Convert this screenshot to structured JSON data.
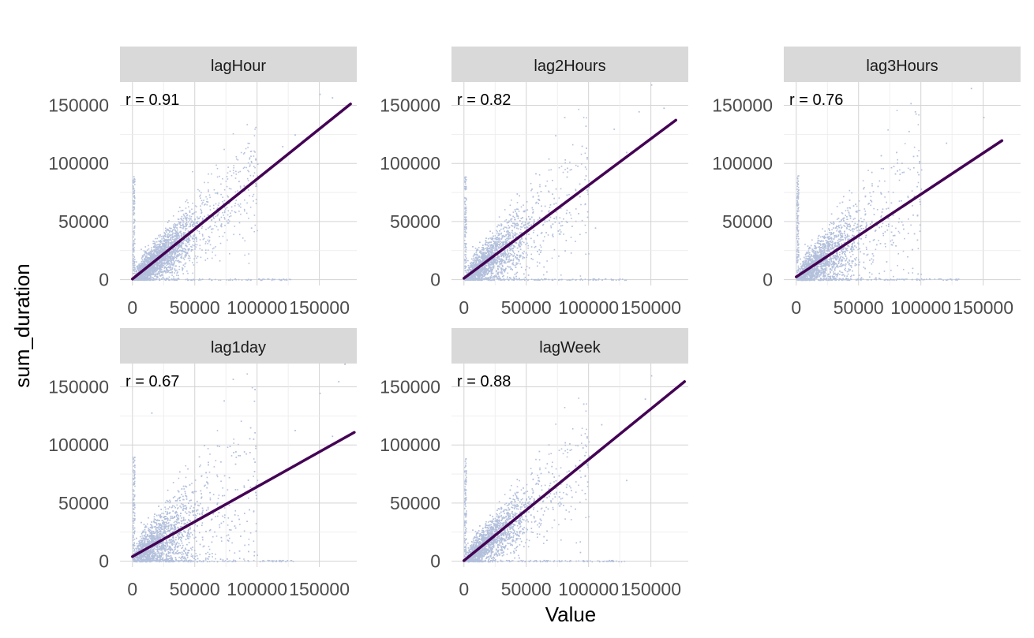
{
  "chart_data": {
    "type": "scatter",
    "title": "",
    "xlabel": "Value",
    "ylabel": "sum_duration",
    "colors": {
      "points": "#b3c0dc",
      "fit_line": "#440154",
      "grid": "#d3d3d3",
      "strip": "#d9d9d9"
    },
    "grid": true,
    "x_ticks": [
      0,
      50000,
      100000,
      150000
    ],
    "x_tick_labels": [
      "0",
      "50000",
      "100000",
      "150000"
    ],
    "y_ticks": [
      0,
      50000,
      100000,
      150000
    ],
    "y_tick_labels": [
      "0",
      "50000",
      "100000",
      "150000"
    ],
    "xlim": [
      -10000,
      180000
    ],
    "ylim": [
      -5000,
      170000
    ],
    "panels": [
      {
        "name": "lagHour",
        "r_label": "r = 0.91",
        "fit": {
          "intercept": 600,
          "slope": 0.86,
          "x_end": 175000
        },
        "x_max": 170000,
        "outliers": [
          [
            150000,
            160000
          ],
          [
            160000,
            157000
          ],
          [
            130000,
            125000
          ],
          [
            100000,
            100000
          ],
          [
            120000,
            115000
          ],
          [
            95000,
            45000
          ],
          [
            85000,
            85000
          ]
        ]
      },
      {
        "name": "lag2Hours",
        "r_label": "r = 0.82",
        "fit": {
          "intercept": 1200,
          "slope": 0.8,
          "x_end": 170000
        },
        "x_max": 165000,
        "outliers": [
          [
            150000,
            168000
          ],
          [
            160000,
            148000
          ],
          [
            140000,
            145000
          ],
          [
            120000,
            130000
          ],
          [
            130000,
            110000
          ],
          [
            100000,
            80000
          ],
          [
            105000,
            45000
          ]
        ]
      },
      {
        "name": "lag3Hours",
        "r_label": "r = 0.76",
        "fit": {
          "intercept": 2400,
          "slope": 0.71,
          "x_end": 165000
        },
        "x_max": 160000,
        "outliers": [
          [
            140000,
            165000
          ],
          [
            95000,
            145000
          ],
          [
            90000,
            128000
          ],
          [
            150000,
            140000
          ],
          [
            120000,
            118000
          ],
          [
            100000,
            95000
          ],
          [
            80000,
            110000
          ]
        ]
      },
      {
        "name": "lag1day",
        "r_label": "r = 0.67",
        "fit": {
          "intercept": 4000,
          "slope": 0.6,
          "x_end": 178000
        },
        "x_max": 175000,
        "outliers": [
          [
            170000,
            170000
          ],
          [
            165000,
            155000
          ],
          [
            150000,
            145000
          ],
          [
            130000,
            113000
          ],
          [
            160000,
            108000
          ],
          [
            30000,
            155000
          ],
          [
            15000,
            128000
          ]
        ]
      },
      {
        "name": "lagWeek",
        "r_label": "r = 0.88",
        "fit": {
          "intercept": 500,
          "slope": 0.87,
          "x_end": 177000
        },
        "x_max": 175000,
        "outliers": [
          [
            150000,
            160000
          ],
          [
            145000,
            140000
          ],
          [
            110000,
            118000
          ],
          [
            95000,
            98000
          ],
          [
            70000,
            82000
          ],
          [
            60000,
            95000
          ],
          [
            130000,
            70000
          ]
        ]
      }
    ]
  }
}
